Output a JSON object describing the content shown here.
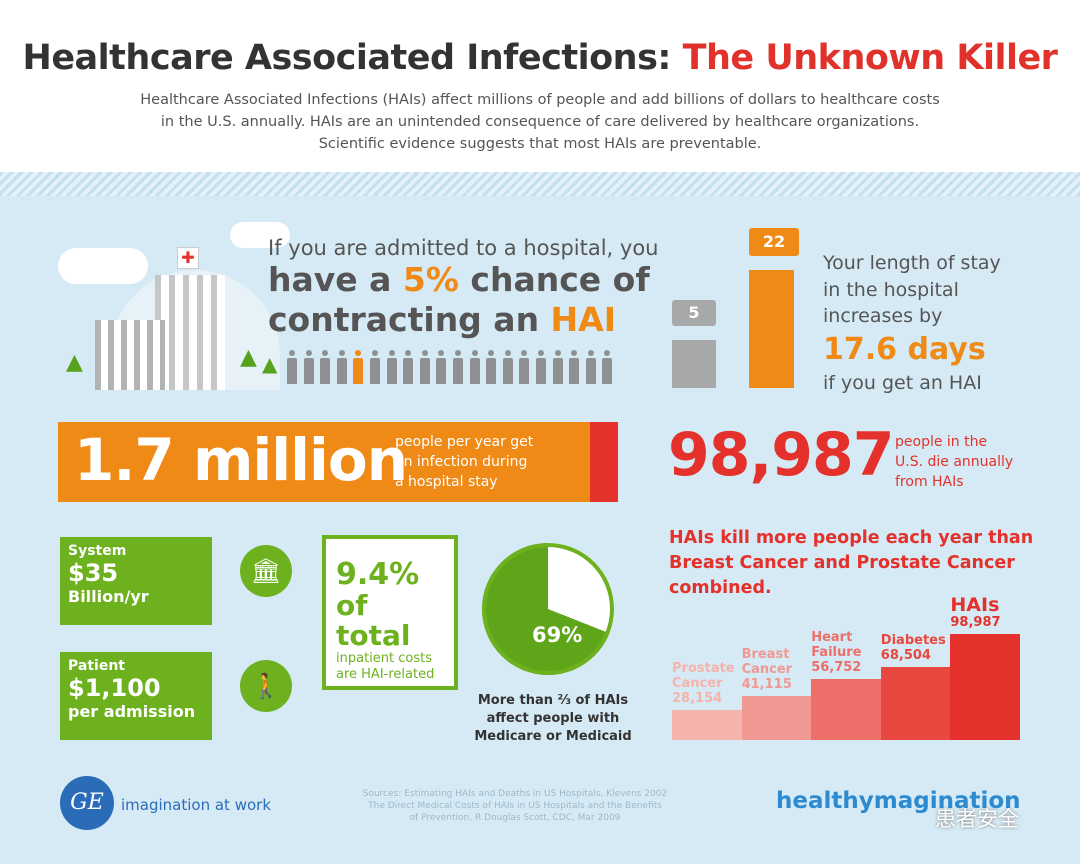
{
  "title": {
    "main": "Healthcare Associated Infections:",
    "accent": "The Unknown Killer"
  },
  "subtitle": [
    "Healthcare Associated Infections (HAIs) affect millions of people and add billions of dollars to healthcare costs",
    "in the U.S. annually. HAIs are an unintended consequence of care delivered by healthcare organizations.",
    "Scientific evidence suggests that most HAIs are preventable."
  ],
  "chance": {
    "line1": "If you are admitted to a hospital, you",
    "line2a": "have a ",
    "pct": "5%",
    "line2b": " chance of",
    "line3a": "contracting an ",
    "line3b": "HAI"
  },
  "stay": {
    "short_days": "5",
    "long_days": "22",
    "line1": "Your length of stay",
    "line2": "in the hospital",
    "line3": "increases by",
    "increase": "17.6 days",
    "line4": "if you get an HAI"
  },
  "infections": {
    "value": "1.7 million",
    "desc": [
      "people per year get",
      "an infection during",
      "a hospital stay"
    ]
  },
  "deaths": {
    "value": "98,987",
    "desc": [
      "people in the",
      "U.S. die annually",
      "from HAIs"
    ]
  },
  "system": {
    "label": "System",
    "value": "$35",
    "unit": "Billion/yr"
  },
  "patient": {
    "label": "Patient",
    "value": "$1,100",
    "unit": "per admission"
  },
  "inpatient": {
    "pct": "9.4%",
    "line": "of total",
    "desc": [
      "inpatient costs",
      "are HAI-related"
    ]
  },
  "medicare": {
    "pct": "69%",
    "fraction": 0.69,
    "desc": [
      "More than ⅔ of HAIs",
      "affect people with",
      "Medicare or Medicaid"
    ]
  },
  "compare_heading": [
    "HAIs kill more people each year than",
    "Breast Cancer and Prostate Cancer",
    "combined."
  ],
  "chart_data": {
    "type": "bar",
    "categories": [
      "Prostate Cancer",
      "Breast Cancer",
      "Heart Failure",
      "Diabetes",
      "HAIs"
    ],
    "values": [
      28154,
      41115,
      56752,
      68504,
      98987
    ],
    "labels": [
      "28,154",
      "41,115",
      "56,752",
      "68,504",
      "98,987"
    ],
    "colors": [
      "#f6b3ab",
      "#f09892",
      "#ec6f6a",
      "#e8483f",
      "#e4312b"
    ]
  },
  "footer": {
    "logo": "GE",
    "tagline": "imagination at work",
    "sources": [
      "Sources:  Estimating HAIs and Deaths in US Hospitals, Klevens 2002",
      "The Direct Medical Costs of HAIs in US Hospitals and the Benefits",
      "of Prevention, R Douglas Scott, CDC,  Mar 2009"
    ],
    "brand": "healthymagination",
    "watermark": "患者安全"
  }
}
